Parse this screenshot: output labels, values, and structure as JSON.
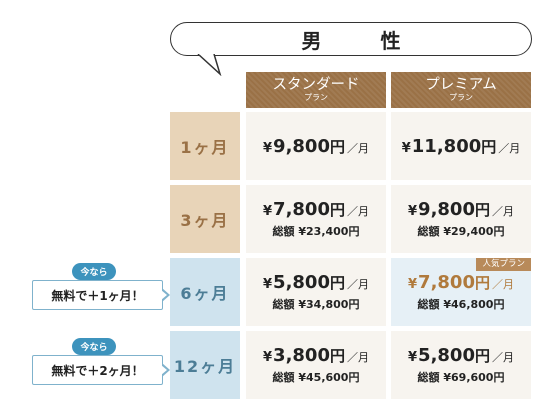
{
  "title": "男 性",
  "plans": [
    {
      "name": "スタンダード",
      "sub": "プラン"
    },
    {
      "name": "プレミアム",
      "sub": "プラン"
    }
  ],
  "rows": [
    {
      "period": "1ヶ月",
      "cells": [
        {
          "yen": "¥",
          "amount": "9,800",
          "unit": "円",
          "per": "／月",
          "total": ""
        },
        {
          "yen": "¥",
          "amount": "11,800",
          "unit": "円",
          "per": "／月",
          "total": ""
        }
      ]
    },
    {
      "period": "3ヶ月",
      "cells": [
        {
          "yen": "¥",
          "amount": "7,800",
          "unit": "円",
          "per": "／月",
          "total": "総額 ¥23,400円"
        },
        {
          "yen": "¥",
          "amount": "9,800",
          "unit": "円",
          "per": "／月",
          "total": "総額 ¥29,400円"
        }
      ]
    },
    {
      "period": "6ヶ月",
      "cells": [
        {
          "yen": "¥",
          "amount": "5,800",
          "unit": "円",
          "per": "／月",
          "total": "総額 ¥34,800円"
        },
        {
          "yen": "¥",
          "amount": "7,800",
          "unit": "円",
          "per": "／月",
          "total": "総額 ¥46,800円",
          "badge": "人気プラン"
        }
      ]
    },
    {
      "period": "12ヶ月",
      "cells": [
        {
          "yen": "¥",
          "amount": "3,800",
          "unit": "円",
          "per": "／月",
          "total": "総額 ¥45,600円"
        },
        {
          "yen": "¥",
          "amount": "5,800",
          "unit": "円",
          "per": "／月",
          "total": "総額 ¥69,600円"
        }
      ]
    }
  ],
  "campaigns": [
    {
      "pill": "今なら",
      "text": "無料で＋1ヶ月！"
    },
    {
      "pill": "今なら",
      "text": "無料で＋2ヶ月！"
    }
  ],
  "colors": {
    "brown": "#9a7146",
    "beige": "#e8d4b8",
    "blue": "#cfe3ee",
    "accent": "#3d93bd"
  }
}
